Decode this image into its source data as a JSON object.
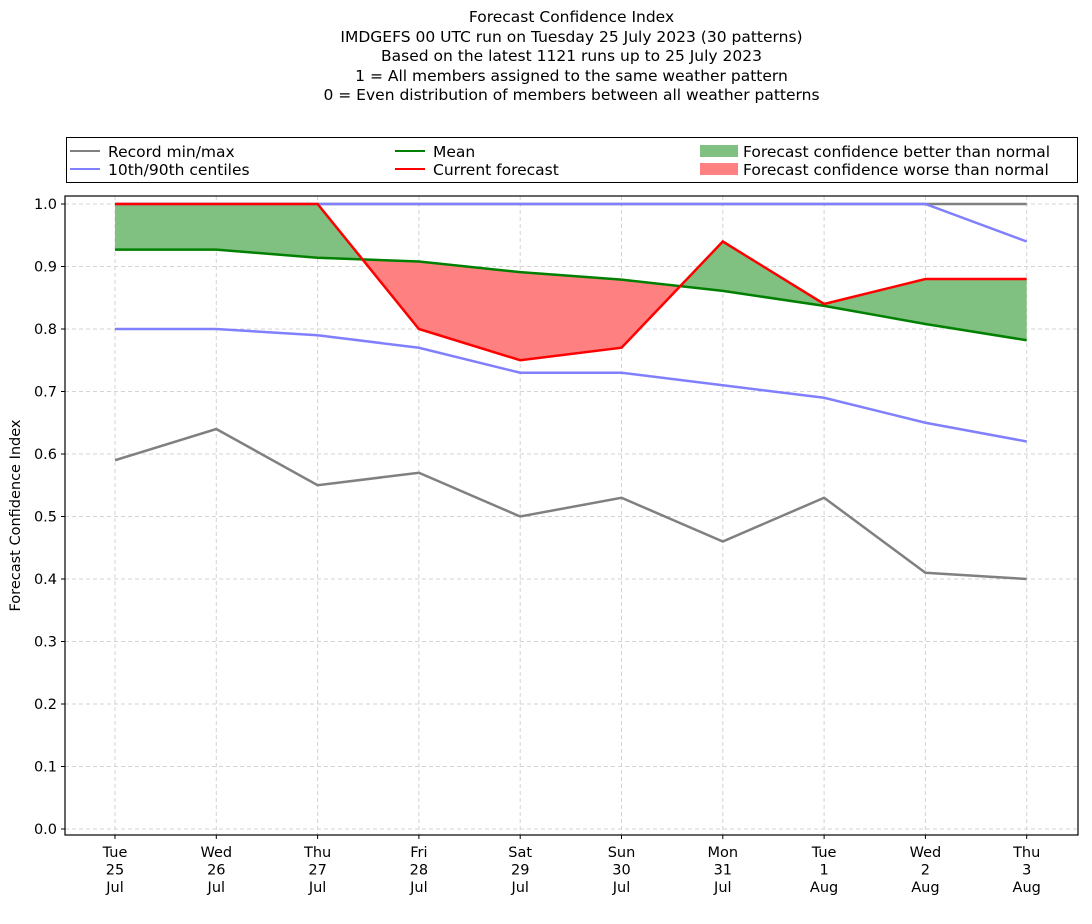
{
  "chart_data": {
    "type": "line",
    "title_lines": [
      "Forecast Confidence Index",
      "IMDGEFS 00 UTC run on Tuesday 25 July 2023 (30 patterns)",
      "Based on the latest 1121 runs up to 25 July 2023",
      "1 = All members assigned to the same weather pattern",
      "0 = Even distribution of members between all weather patterns"
    ],
    "xlabel": "",
    "ylabel": "Forecast Confidence Index",
    "ylim": [
      0.0,
      1.0
    ],
    "yticks": [
      "0.0",
      "0.1",
      "0.2",
      "0.3",
      "0.4",
      "0.5",
      "0.6",
      "0.7",
      "0.8",
      "0.9",
      "1.0"
    ],
    "grid": true,
    "categories": [
      [
        "Tue",
        "25",
        "Jul"
      ],
      [
        "Wed",
        "26",
        "Jul"
      ],
      [
        "Thu",
        "27",
        "Jul"
      ],
      [
        "Fri",
        "28",
        "Jul"
      ],
      [
        "Sat",
        "29",
        "Jul"
      ],
      [
        "Sun",
        "30",
        "Jul"
      ],
      [
        "Mon",
        "31",
        "Jul"
      ],
      [
        "Tue",
        "1",
        "Aug"
      ],
      [
        "Wed",
        "2",
        "Aug"
      ],
      [
        "Thu",
        "3",
        "Aug"
      ]
    ],
    "series": [
      {
        "name": "Record max",
        "legend": "Record min/max",
        "color": "#808080",
        "values": [
          1.0,
          1.0,
          1.0,
          1.0,
          1.0,
          1.0,
          1.0,
          1.0,
          1.0,
          1.0
        ]
      },
      {
        "name": "Record min",
        "legend": "Record min/max",
        "color": "#808080",
        "values": [
          0.59,
          0.64,
          0.55,
          0.57,
          0.5,
          0.53,
          0.46,
          0.53,
          0.41,
          0.4
        ]
      },
      {
        "name": "90th centile",
        "legend": "10th/90th centiles",
        "color": "#8080ff",
        "values": [
          1.0,
          1.0,
          1.0,
          1.0,
          1.0,
          1.0,
          1.0,
          1.0,
          1.0,
          0.94
        ]
      },
      {
        "name": "10th centile",
        "legend": "10th/90th centiles",
        "color": "#8080ff",
        "values": [
          0.8,
          0.8,
          0.79,
          0.77,
          0.73,
          0.73,
          0.71,
          0.69,
          0.65,
          0.62
        ]
      },
      {
        "name": "Mean",
        "legend": "Mean",
        "color": "#008000",
        "values": [
          0.927,
          0.927,
          0.914,
          0.908,
          0.891,
          0.879,
          0.861,
          0.837,
          0.808,
          0.782
        ]
      },
      {
        "name": "Current forecast",
        "legend": "Current forecast",
        "color": "#ff0000",
        "values": [
          1.0,
          1.0,
          1.0,
          0.8,
          0.75,
          0.77,
          0.94,
          0.84,
          0.88,
          0.88
        ]
      }
    ],
    "fills": [
      {
        "name": "Forecast confidence better than normal",
        "color": "#80c080",
        "condition": "forecast > mean"
      },
      {
        "name": "Forecast confidence worse than normal",
        "color": "#ff8080",
        "condition": "forecast < mean"
      }
    ],
    "legend": {
      "placement": "top (above plot)",
      "entries": [
        {
          "label": "Record min/max",
          "kind": "line",
          "color": "#808080"
        },
        {
          "label": "10th/90th centiles",
          "kind": "line",
          "color": "#8080ff"
        },
        {
          "label": "Mean",
          "kind": "line",
          "color": "#008000"
        },
        {
          "label": "Current forecast",
          "kind": "line",
          "color": "#ff0000"
        },
        {
          "label": "Forecast confidence better than normal",
          "kind": "patch",
          "color": "#80c080"
        },
        {
          "label": "Forecast confidence worse than normal",
          "kind": "patch",
          "color": "#ff8080"
        }
      ]
    }
  }
}
